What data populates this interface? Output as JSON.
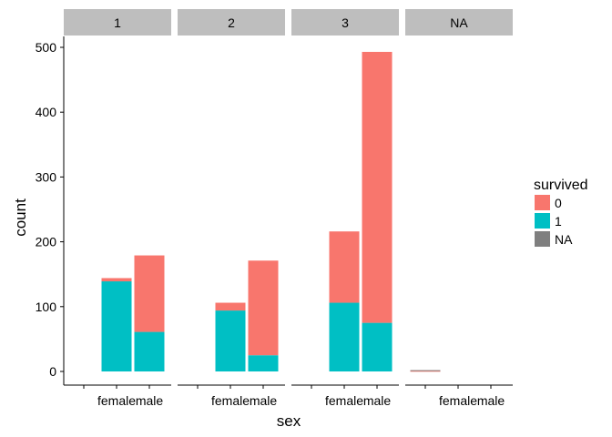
{
  "chart_data": {
    "type": "bar",
    "stacked": true,
    "facet_by": "pclass",
    "facets": [
      "1",
      "2",
      "3",
      "NA"
    ],
    "categories": [
      "",
      "female",
      "male"
    ],
    "xlabel": "sex",
    "ylabel": "count",
    "ylim": [
      0,
      520
    ],
    "yticks": [
      0,
      100,
      200,
      300,
      400,
      500
    ],
    "grid": false,
    "legend": {
      "title": "survived",
      "placement": "right",
      "entries": [
        "0",
        "1",
        "NA"
      ]
    },
    "series": [
      {
        "name": "0",
        "color": "#F8766D",
        "values": [
          [
            0,
            5,
            118
          ],
          [
            0,
            12,
            146
          ],
          [
            0,
            110,
            418
          ],
          [
            1,
            0,
            0
          ]
        ]
      },
      {
        "name": "1",
        "color": "#00BFC4",
        "values": [
          [
            0,
            139,
            61
          ],
          [
            0,
            94,
            25
          ],
          [
            0,
            106,
            75
          ],
          [
            0,
            0,
            0
          ]
        ]
      },
      {
        "name": "NA",
        "color": "#7F7F7F",
        "values": [
          [
            0,
            0,
            0
          ],
          [
            0,
            0,
            0
          ],
          [
            0,
            0,
            0
          ],
          [
            1,
            0,
            0
          ]
        ]
      }
    ],
    "colors": {
      "strip_bg": "#BEBEBE",
      "axis": "#000000"
    }
  }
}
